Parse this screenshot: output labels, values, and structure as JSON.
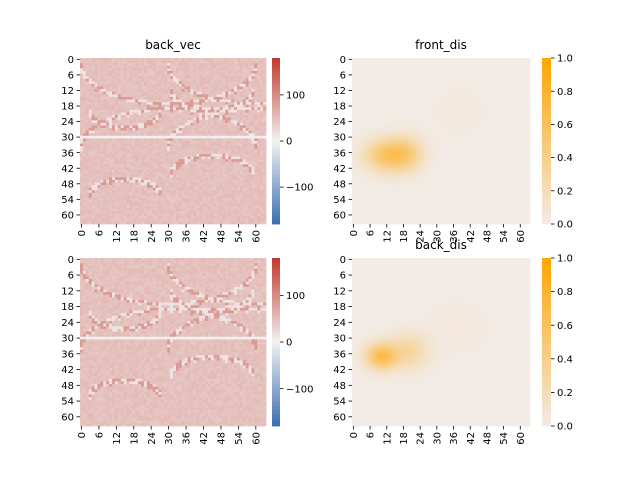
{
  "chart_data": [
    {
      "type": "heatmap",
      "title": "back_vec",
      "xticks": [
        "0",
        "6",
        "12",
        "18",
        "24",
        "30",
        "36",
        "42",
        "48",
        "54",
        "60"
      ],
      "yticks": [
        "0",
        "6",
        "12",
        "18",
        "24",
        "30",
        "36",
        "42",
        "48",
        "54",
        "60"
      ],
      "grid_size": 64,
      "colormap": {
        "type": "diverging",
        "low": "#3b6fb0",
        "mid": "#f2f2f2",
        "high": "#c0392b",
        "vmin": -180,
        "vmax": 180
      },
      "colorbar_ticks": [
        "100",
        "0",
        "−100"
      ],
      "colorbar_tick_values": [
        100,
        0,
        -100
      ],
      "features": {
        "background_value": 48,
        "separator_rows": [
          30
        ],
        "separator_value": 0,
        "arc_values": [
          15,
          85
        ]
      }
    },
    {
      "type": "heatmap",
      "title": "front_dis",
      "xticks": [
        "0",
        "6",
        "12",
        "18",
        "24",
        "30",
        "36",
        "42",
        "48",
        "54",
        "60"
      ],
      "yticks": [
        "0",
        "6",
        "12",
        "18",
        "24",
        "30",
        "36",
        "42",
        "48",
        "54",
        "60"
      ],
      "grid_size": 64,
      "colormap": {
        "type": "sequential",
        "low": "#f2ebe6",
        "high": "#ffa500",
        "vmin": 0,
        "vmax": 1
      },
      "colorbar_ticks": [
        "1.0",
        "0.8",
        "0.6",
        "0.4",
        "0.2",
        "0.0"
      ],
      "colorbar_tick_values": [
        1.0,
        0.8,
        0.6,
        0.4,
        0.2,
        0.0
      ],
      "blobs": [
        {
          "row": 37,
          "col": 13,
          "sigma_row": 4.5,
          "sigma_col": 6,
          "amp": 0.6
        },
        {
          "row": 36,
          "col": 20,
          "sigma_row": 5,
          "sigma_col": 4,
          "amp": 0.22
        },
        {
          "row": 20,
          "col": 38,
          "sigma_row": 6,
          "sigma_col": 6,
          "amp": 0.05
        }
      ]
    },
    {
      "type": "heatmap",
      "title": "",
      "xticks": [
        "0",
        "6",
        "12",
        "18",
        "24",
        "30",
        "36",
        "42",
        "48",
        "54",
        "60"
      ],
      "yticks": [
        "0",
        "6",
        "12",
        "18",
        "24",
        "30",
        "36",
        "42",
        "48",
        "54",
        "60"
      ],
      "grid_size": 64,
      "colormap": {
        "type": "diverging",
        "low": "#3b6fb0",
        "mid": "#f2f2f2",
        "high": "#c0392b",
        "vmin": -180,
        "vmax": 180
      },
      "colorbar_ticks": [
        "100",
        "0",
        "−100"
      ],
      "colorbar_tick_values": [
        100,
        0,
        -100
      ],
      "features": {
        "background_value": 48,
        "separator_rows": [
          30
        ],
        "separator_value": 0,
        "arc_values": [
          15,
          85
        ]
      }
    },
    {
      "type": "heatmap",
      "title": "back_dis",
      "xticks": [
        "0",
        "6",
        "12",
        "18",
        "24",
        "30",
        "36",
        "42",
        "48",
        "54",
        "60"
      ],
      "yticks": [
        "0",
        "6",
        "12",
        "18",
        "24",
        "30",
        "36",
        "42",
        "48",
        "54",
        "60"
      ],
      "grid_size": 64,
      "colormap": {
        "type": "sequential",
        "low": "#f2ebe6",
        "high": "#ffa500",
        "vmin": 0,
        "vmax": 1
      },
      "colorbar_ticks": [
        "1.0",
        "0.8",
        "0.6",
        "0.4",
        "0.2",
        "0.0"
      ],
      "colorbar_tick_values": [
        1.0,
        0.8,
        0.6,
        0.4,
        0.2,
        0.0
      ],
      "blobs": [
        {
          "row": 37,
          "col": 10,
          "sigma_row": 3.5,
          "sigma_col": 4,
          "amp": 0.65
        },
        {
          "row": 35,
          "col": 20,
          "sigma_row": 5,
          "sigma_col": 5,
          "amp": 0.3
        },
        {
          "row": 26,
          "col": 38,
          "sigma_row": 7,
          "sigma_col": 7,
          "amp": 0.05
        }
      ]
    }
  ]
}
